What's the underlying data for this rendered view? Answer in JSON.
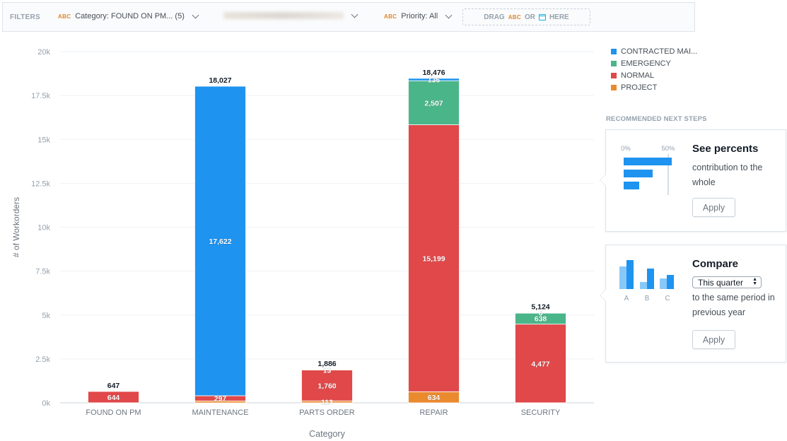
{
  "filters": {
    "label": "FILTERS",
    "items": [
      {
        "type": "ABC",
        "text": "Category: FOUND ON PM... (5)"
      },
      {
        "type": "ABC",
        "text": "Priority: All"
      }
    ],
    "dropzone": {
      "drag": "DRAG",
      "type": "ABC",
      "or": "OR",
      "here": "HERE"
    }
  },
  "legend": [
    {
      "name": "CONTRACTED MAI...",
      "color": "#1e93f0"
    },
    {
      "name": "EMERGENCY",
      "color": "#4bb58a"
    },
    {
      "name": "NORMAL",
      "color": "#e0484a"
    },
    {
      "name": "PROJECT",
      "color": "#ea8a2f"
    }
  ],
  "recommendations": {
    "title": "RECOMMENDED NEXT STEPS",
    "percent_card": {
      "title": "See percents",
      "text": "contribution to the whole",
      "tick0": "0%",
      "tick50": "50%",
      "apply": "Apply"
    },
    "compare_card": {
      "title": "Compare",
      "select": "This quarter",
      "text": "to the same period in previous year",
      "labels": [
        "A",
        "B",
        "C"
      ],
      "apply": "Apply"
    }
  },
  "chart_data": {
    "type": "bar",
    "stacked": true,
    "xlabel": "Category",
    "ylabel": "# of Workorders",
    "ylim": [
      0,
      20000
    ],
    "yticks": [
      "0k",
      "2.5k",
      "5k",
      "7.5k",
      "10k",
      "12.5k",
      "15k",
      "17.5k",
      "20k"
    ],
    "categories": [
      "FOUND ON PM",
      "MAINTENANCE",
      "PARTS ORDER",
      "REPAIR",
      "SECURITY"
    ],
    "totals": [
      "647",
      "18,027",
      "1,886",
      "18,476",
      "5,124"
    ],
    "series": [
      {
        "name": "PROJECT",
        "color": "#ea8a2f",
        "values": [
          3,
          108,
          113,
          634,
          3
        ],
        "labels": [
          "",
          "",
          "113",
          "634",
          ""
        ]
      },
      {
        "name": "NORMAL",
        "color": "#e0484a",
        "values": [
          644,
          297,
          1760,
          15199,
          4477
        ],
        "labels": [
          "644",
          "297",
          "1,760",
          "15,199",
          "4,477"
        ]
      },
      {
        "name": "EMERGENCY",
        "color": "#4bb58a",
        "values": [
          0,
          0,
          13,
          2507,
          638
        ],
        "labels": [
          "",
          "",
          "13",
          "2,507",
          "638"
        ]
      },
      {
        "name": "CONTRACTED MAI...",
        "color": "#1e93f0",
        "values": [
          0,
          17622,
          0,
          136,
          6
        ],
        "labels": [
          "",
          "17,622",
          "",
          "136",
          "6"
        ]
      }
    ]
  }
}
